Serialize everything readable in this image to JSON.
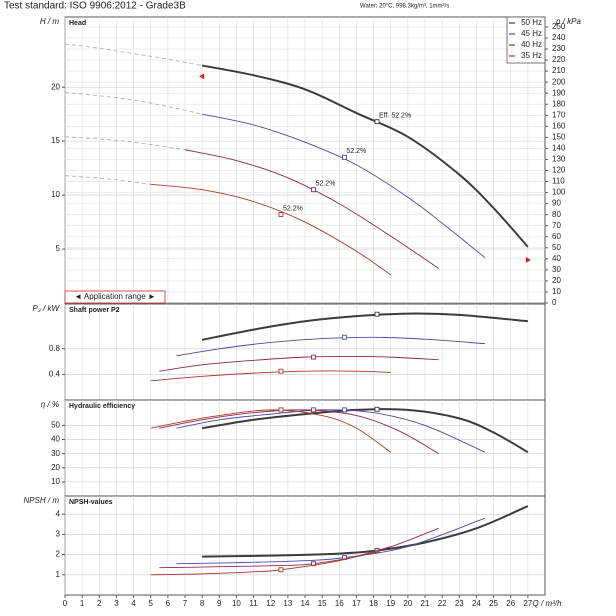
{
  "header": {
    "standard": "Test standard: ISO 9906:2012 - Grade3B",
    "conditions": "Water; 20°C, 998.3kg/m³, 1mm²/s",
    "application_range": "◄ Application range ►"
  },
  "chart_data": [
    {
      "type": "line",
      "title": "Head",
      "y_label": "H / m",
      "y2_label": "p / kPa",
      "xlim": [
        0,
        28
      ],
      "ylim": [
        0,
        26.5
      ],
      "yticks": [
        5,
        10,
        15,
        20
      ],
      "y2lim": [
        0,
        259
      ],
      "y2ticks": [
        0,
        10,
        20,
        30,
        40,
        50,
        60,
        70,
        80,
        90,
        100,
        110,
        120,
        130,
        140,
        150,
        160,
        170,
        180,
        190,
        200,
        210,
        220,
        230,
        240,
        250
      ],
      "grid": true,
      "legend": "top-right",
      "series": [
        {
          "name": "50 Hz",
          "color": "#3c3c3c",
          "x": [
            8,
            11,
            14,
            17,
            20,
            23,
            25,
            27
          ],
          "values": [
            22,
            21.1,
            19.8,
            17.6,
            15.4,
            11.9,
            8.8,
            5.2
          ],
          "dashed_x": [
            0,
            2,
            4,
            6,
            8
          ],
          "dashed_values": [
            24,
            23.6,
            23.1,
            22.6,
            22
          ],
          "marker_x": 18.2,
          "marker_value": 16.8,
          "marker_label": "Eff. 52.2%"
        },
        {
          "name": "45 Hz",
          "color": "#4a4aa8",
          "x": [
            8,
            11,
            14,
            17,
            20,
            22,
            24.5
          ],
          "values": [
            17.5,
            16.5,
            14.9,
            12.8,
            9.8,
            7.4,
            4.2
          ],
          "dashed_x": [
            0,
            2,
            4,
            6,
            8
          ],
          "dashed_values": [
            19.5,
            19.2,
            18.8,
            18.2,
            17.5
          ],
          "marker_x": 16.3,
          "marker_value": 13.5,
          "marker_label": "52.2%"
        },
        {
          "name": "40 Hz",
          "color": "#8b2a55",
          "x": [
            7,
            10,
            13,
            16,
            19,
            21.8
          ],
          "values": [
            14.2,
            13.2,
            11.6,
            9.2,
            6.2,
            3.2
          ],
          "dashed_x": [
            0,
            2,
            4,
            7
          ],
          "dashed_values": [
            15.4,
            15.2,
            14.9,
            14.2
          ],
          "marker_x": 14.5,
          "marker_value": 10.5,
          "marker_label": "52.2%"
        },
        {
          "name": "35 Hz",
          "color": "#a83a2a",
          "x": [
            5,
            8,
            11,
            14,
            17,
            19
          ],
          "values": [
            11.0,
            10.5,
            9.4,
            7.5,
            4.8,
            2.6
          ],
          "dashed_x": [
            0,
            2.5,
            5
          ],
          "dashed_values": [
            11.8,
            11.5,
            11.0
          ],
          "marker_x": 12.6,
          "marker_value": 8.2,
          "marker_label": "52.2%"
        }
      ]
    },
    {
      "type": "line",
      "title": "Shaft power P2",
      "y_label": "P₂ / kW",
      "xlim": [
        0,
        28
      ],
      "ylim": [
        0,
        1.5
      ],
      "yticks": [
        0.4,
        0.8
      ],
      "grid": true,
      "series": [
        {
          "name": "50 Hz",
          "color": "#3c3c3c",
          "x": [
            8,
            11,
            14,
            17,
            20,
            23,
            27
          ],
          "values": [
            0.94,
            1.1,
            1.23,
            1.31,
            1.35,
            1.33,
            1.23
          ],
          "marker_x": 18.2,
          "marker_value": 1.34
        },
        {
          "name": "45 Hz",
          "color": "#4a4aa8",
          "x": [
            6.5,
            9,
            12,
            15,
            18,
            21,
            24.5
          ],
          "values": [
            0.69,
            0.8,
            0.9,
            0.96,
            0.98,
            0.95,
            0.88
          ],
          "marker_x": 16.3,
          "marker_value": 0.98
        },
        {
          "name": "40 Hz",
          "color": "#8b2a55",
          "x": [
            5.5,
            8,
            11,
            14,
            17,
            19,
            21.8
          ],
          "values": [
            0.45,
            0.55,
            0.62,
            0.67,
            0.68,
            0.67,
            0.63
          ],
          "marker_x": 14.5,
          "marker_value": 0.67
        },
        {
          "name": "35 Hz",
          "color": "#a83a2a",
          "x": [
            5,
            8,
            11,
            14,
            17,
            19
          ],
          "values": [
            0.3,
            0.37,
            0.42,
            0.45,
            0.45,
            0.43
          ],
          "marker_x": 12.6,
          "marker_value": 0.45
        }
      ]
    },
    {
      "type": "line",
      "title": "Hydraulic efficiency",
      "y_label": "η / %",
      "xlim": [
        0,
        28
      ],
      "ylim": [
        0,
        68
      ],
      "yticks": [
        10,
        20,
        30,
        40,
        50
      ],
      "grid": true,
      "series": [
        {
          "name": "50 Hz",
          "color": "#3c3c3c",
          "x": [
            8,
            11,
            14,
            17,
            20,
            23,
            25,
            27
          ],
          "values": [
            48,
            54,
            58,
            61,
            61,
            55,
            45,
            31
          ],
          "marker_x": 18.2,
          "marker_value": 61.4
        },
        {
          "name": "45 Hz",
          "color": "#4a4aa8",
          "x": [
            6.5,
            9,
            12,
            15,
            18,
            21,
            24.5
          ],
          "values": [
            48,
            54,
            58,
            61,
            59,
            50,
            31
          ],
          "marker_x": 16.3,
          "marker_value": 61
        },
        {
          "name": "40 Hz",
          "color": "#8b2a55",
          "x": [
            5.5,
            8,
            11,
            14,
            17,
            19.5,
            21.8
          ],
          "values": [
            48,
            54,
            59,
            61,
            57,
            46,
            30
          ],
          "marker_x": 14.5,
          "marker_value": 61
        },
        {
          "name": "35 Hz",
          "color": "#a83a2a",
          "x": [
            5,
            7,
            9,
            12,
            15,
            17,
            19
          ],
          "values": [
            48,
            53,
            57,
            61,
            57,
            48,
            31
          ],
          "marker_x": 12.6,
          "marker_value": 61
        }
      ]
    },
    {
      "type": "line",
      "title": "NPSH-values",
      "y_label": "NPSH / m",
      "x_label": "Q / m³/h",
      "xlim": [
        0,
        28
      ],
      "ylim": [
        0,
        4.9
      ],
      "yticks": [
        1,
        2,
        3,
        4
      ],
      "xticks": [
        0,
        1,
        2,
        3,
        4,
        5,
        6,
        7,
        8,
        9,
        10,
        11,
        12,
        13,
        14,
        15,
        16,
        17,
        18,
        19,
        20,
        21,
        22,
        23,
        24,
        25,
        26,
        27
      ],
      "grid": true,
      "series": [
        {
          "name": "50 Hz",
          "color": "#3c3c3c",
          "x": [
            8,
            12,
            16,
            18.2,
            21,
            24,
            27
          ],
          "values": [
            1.9,
            1.95,
            2.05,
            2.2,
            2.6,
            3.3,
            4.4
          ],
          "marker_x": 18.2,
          "marker_value": 2.2
        },
        {
          "name": "45 Hz",
          "color": "#4a4aa8",
          "x": [
            6.5,
            10,
            14,
            16.3,
            20,
            24.5
          ],
          "values": [
            1.55,
            1.6,
            1.7,
            1.85,
            2.4,
            3.8
          ],
          "marker_x": 16.3,
          "marker_value": 1.85
        },
        {
          "name": "40 Hz",
          "color": "#8b2a55",
          "x": [
            5.5,
            9,
            12,
            14.5,
            18,
            21.8
          ],
          "values": [
            1.35,
            1.4,
            1.45,
            1.55,
            2.1,
            3.3
          ],
          "marker_x": 14.5,
          "marker_value": 1.55
        },
        {
          "name": "35 Hz",
          "color": "#a83a2a",
          "x": [
            5,
            8,
            11,
            12.6,
            16,
            19
          ],
          "values": [
            1.0,
            1.05,
            1.15,
            1.25,
            1.7,
            2.4
          ],
          "marker_x": 12.6,
          "marker_value": 1.25
        }
      ]
    }
  ]
}
